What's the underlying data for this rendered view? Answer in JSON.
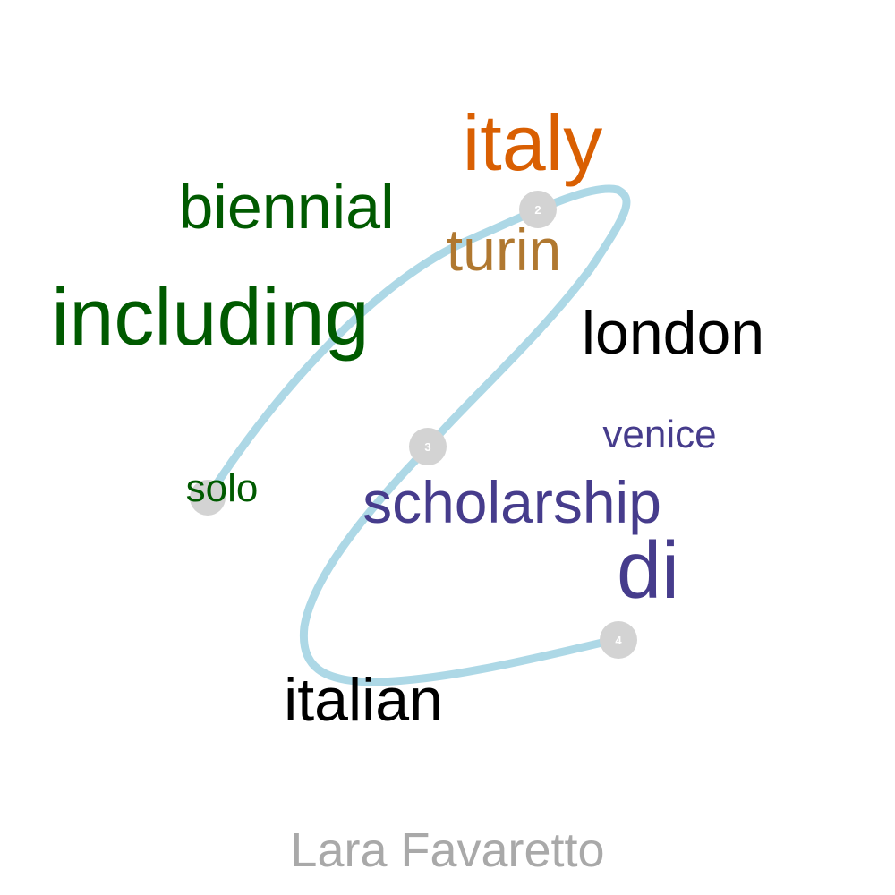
{
  "title": "Lara Favaretto",
  "path_color": "#add8e6",
  "marker_color": "#d3d3d3",
  "marker_label_color": "#ffffff",
  "title_color": "#a9a9a9",
  "markers": [
    "2",
    "3",
    "4"
  ],
  "words": [
    {
      "text": "italy",
      "color": "#d95f02",
      "weight": 6
    },
    {
      "text": "biennial",
      "color": "#005a00",
      "weight": 4
    },
    {
      "text": "turin",
      "color": "#b07830",
      "weight": 4
    },
    {
      "text": "including",
      "color": "#005a00",
      "weight": 6
    },
    {
      "text": "london",
      "color": "#000000",
      "weight": 4
    },
    {
      "text": "venice",
      "color": "#463c8c",
      "weight": 2
    },
    {
      "text": "solo",
      "color": "#005a00",
      "weight": 2
    },
    {
      "text": "scholarship",
      "color": "#463c8c",
      "weight": 4
    },
    {
      "text": "di",
      "color": "#463c8c",
      "weight": 6
    },
    {
      "text": "italian",
      "color": "#000000",
      "weight": 4
    }
  ]
}
